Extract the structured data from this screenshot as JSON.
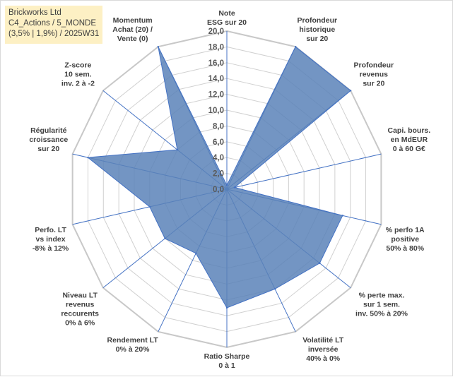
{
  "title_box": {
    "line1": "Brickworks Ltd",
    "line2": "C4_Actions / 5_MONDE",
    "line3": "(3,5% | 1,9%) / 2025W31"
  },
  "colors": {
    "fill": "#5b82b8",
    "stroke": "#4472c4",
    "grid": "#d0d0d0",
    "title_bg": "#fdf0c4"
  },
  "chart_data": {
    "type": "radar",
    "r_range": [
      0,
      20
    ],
    "r_tick_step": 2,
    "r_ticks": [
      "0,0",
      "2,0",
      "4,0",
      "6,0",
      "8,0",
      "10,0",
      "12,0",
      "14,0",
      "16,0",
      "18,0",
      "20,0"
    ],
    "grid": true,
    "axes": [
      {
        "label": [
          "Note",
          "ESG sur 20"
        ],
        "value": 0.5
      },
      {
        "label": [
          "Profondeur",
          "historique",
          "sur 20"
        ],
        "value": 20
      },
      {
        "label": [
          "Profondeur",
          "revenus",
          "sur 20"
        ],
        "value": 20
      },
      {
        "label": [
          "Capi. bours.",
          "en MdEUR",
          "0 à 60 G€"
        ],
        "value": 1
      },
      {
        "label": [
          "% perfo 1A",
          "positive",
          "50% à 80%"
        ],
        "value": 15
      },
      {
        "label": [
          "% perte max.",
          "sur 1 sem.",
          "inv. 50% à 20%"
        ],
        "value": 15
      },
      {
        "label": [
          "Volatilité LT",
          "inversée",
          "40% à 0%"
        ],
        "value": 14
      },
      {
        "label": [
          "Ratio Sharpe",
          "0 à 1"
        ],
        "value": 15
      },
      {
        "label": [
          "Rendement LT",
          "0% à 20%"
        ],
        "value": 9
      },
      {
        "label": [
          "Niveau LT",
          "revenus",
          "reccurents",
          "0% à 6%"
        ],
        "value": 10
      },
      {
        "label": [
          "Perfo. LT",
          "vs index",
          "-8% à 12%"
        ],
        "value": 10
      },
      {
        "label": [
          "Régularité",
          "croissance",
          "sur 20"
        ],
        "value": 18
      },
      {
        "label": [
          "Z-score",
          "10 sem.",
          "inv. 2 à -2"
        ],
        "value": 8
      },
      {
        "label": [
          "Momentum",
          "Achat (20) /",
          "Vente (0)"
        ],
        "value": 20
      }
    ]
  }
}
